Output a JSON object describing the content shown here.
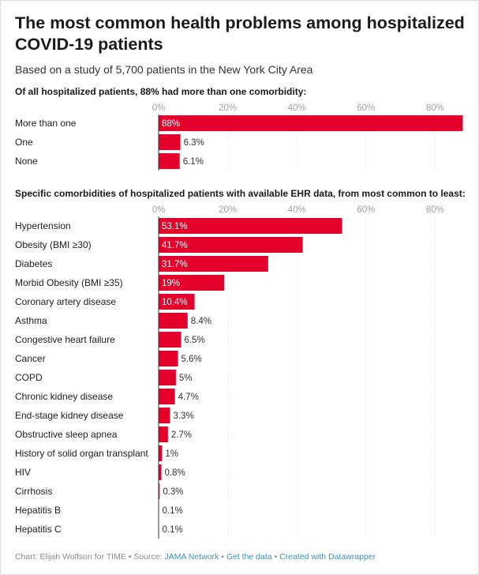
{
  "title": "The most common health problems among hospitalized COVID-19 patients",
  "subtitle": "Based on a study of 5,700 patients in the New York City Area",
  "footer": {
    "chart_prefix": "Chart: Elijah Wolfson for TIME",
    "sep1": " • ",
    "source_prefix": "Source: ",
    "source": "JAMA Network",
    "sep2": " • ",
    "get_data": "Get the data",
    "sep3": " • ",
    "created": "Created with Datawrapper"
  },
  "colors": {
    "bar": "#e3002b",
    "grid": "#e5e5e5",
    "axis": "#333333",
    "tick": "#a0a0a0",
    "label_inside": "#ffffff",
    "label_outside": "#333333"
  },
  "chart_data": [
    {
      "type": "bar",
      "orientation": "horizontal",
      "title": "Of all hospitalized patients, 88% had more than one comorbidity:",
      "xlim": [
        0,
        88
      ],
      "ticks": [
        0,
        20,
        40,
        60,
        80
      ],
      "tick_labels": [
        "0%",
        "20%",
        "40%",
        "60%",
        "80%"
      ],
      "grid": true,
      "categories": [
        "More than one",
        "One",
        "None"
      ],
      "values": [
        88,
        6.3,
        6.1
      ],
      "value_labels": [
        "88%",
        "6.3%",
        "6.1%"
      ]
    },
    {
      "type": "bar",
      "orientation": "horizontal",
      "title": "Specific comorbidities of hospitalized patients with available EHR data, from most common to least:",
      "xlim": [
        0,
        88
      ],
      "ticks": [
        0,
        20,
        40,
        60,
        80
      ],
      "tick_labels": [
        "0%",
        "20%",
        "40%",
        "60%",
        "80%"
      ],
      "grid": true,
      "categories": [
        "Hypertension",
        "Obesity (BMI ≥30)",
        "Diabetes",
        "Morbid Obesity (BMI ≥35)",
        "Coronary artery disease",
        "Asthma",
        "Congestive heart failure",
        "Cancer",
        "COPD",
        "Chronic kidney disease",
        "End-stage kidney disease",
        "Obstructive sleep apnea",
        "History of solid organ transplant",
        "HIV",
        "Cirrhosis",
        "Hepatitis B",
        "Hepatitis C"
      ],
      "values": [
        53.1,
        41.7,
        31.7,
        19,
        10.4,
        8.4,
        6.5,
        5.6,
        5,
        4.7,
        3.3,
        2.7,
        1,
        0.8,
        0.3,
        0.1,
        0.1
      ],
      "value_labels": [
        "53.1%",
        "41.7%",
        "31.7%",
        "19%",
        "10.4%",
        "8.4%",
        "6.5%",
        "5.6%",
        "5%",
        "4.7%",
        "3.3%",
        "2.7%",
        "1%",
        "0.8%",
        "0.3%",
        "0.1%",
        "0.1%"
      ]
    }
  ]
}
